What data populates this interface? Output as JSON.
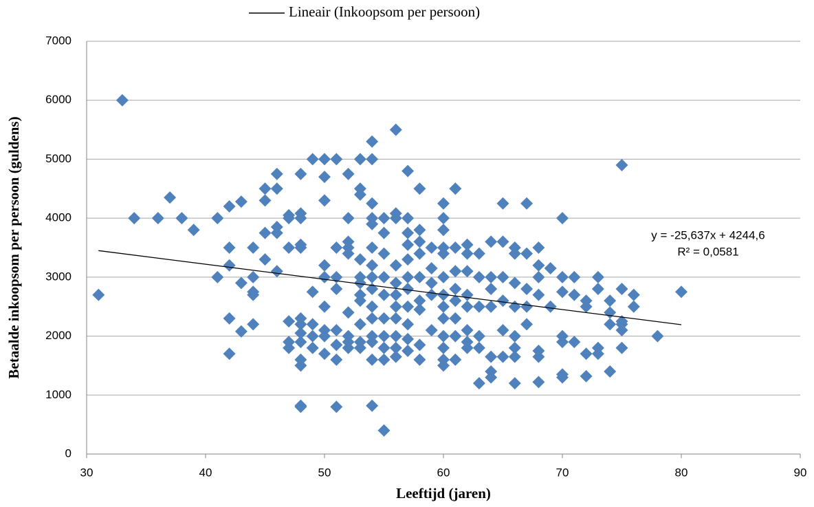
{
  "chart_data": {
    "type": "scatter",
    "legend": {
      "position": "top"
    },
    "xlabel": "Leeftijd (jaren)",
    "ylabel": "Betaalde inkoopsom per persoon (guldens)",
    "xlim": [
      30,
      90
    ],
    "xticks": [
      30,
      40,
      50,
      60,
      70,
      80,
      90
    ],
    "ylim": [
      0,
      7000
    ],
    "yticks": [
      0,
      1000,
      2000,
      3000,
      4000,
      5000,
      6000,
      7000
    ],
    "grid": true,
    "series": [
      {
        "color": "#4f81bd",
        "x": [
          31,
          33,
          34,
          36,
          37,
          38,
          39,
          41,
          41,
          42,
          42,
          42,
          42,
          42,
          43,
          43,
          43,
          44,
          44,
          44,
          44,
          44,
          45,
          45,
          45,
          45,
          46,
          46,
          46,
          46,
          46,
          47,
          47,
          47,
          47,
          47,
          47,
          48,
          48,
          48,
          48,
          48,
          48,
          48,
          48,
          48,
          48,
          48,
          48,
          48,
          49,
          49,
          49,
          49,
          49,
          50,
          50,
          50,
          50,
          50,
          50,
          50,
          50,
          50,
          51,
          51,
          51,
          51,
          51,
          51,
          51,
          51,
          52,
          52,
          52,
          52,
          52,
          52,
          52,
          52,
          52,
          53,
          53,
          53,
          53,
          53,
          53,
          53,
          53,
          53,
          53,
          53,
          54,
          54,
          54,
          54,
          54,
          54,
          54,
          54,
          54,
          54,
          54,
          54,
          54,
          54,
          54,
          55,
          55,
          55,
          55,
          55,
          55,
          55,
          55,
          55,
          55,
          56,
          56,
          56,
          56,
          56,
          56,
          56,
          56,
          56,
          56,
          56,
          57,
          57,
          57,
          57,
          57,
          57,
          57,
          57,
          57,
          57,
          57,
          58,
          58,
          58,
          58,
          58,
          58,
          58,
          58,
          58,
          59,
          59,
          59,
          59,
          59,
          60,
          60,
          60,
          60,
          60,
          60,
          60,
          60,
          60,
          60,
          60,
          60,
          60,
          61,
          61,
          61,
          61,
          61,
          61,
          61,
          61,
          62,
          62,
          62,
          62,
          62,
          62,
          62,
          62,
          63,
          63,
          63,
          63,
          63,
          63,
          64,
          64,
          64,
          64,
          64,
          64,
          64,
          65,
          65,
          65,
          65,
          65,
          65,
          66,
          66,
          66,
          66,
          66,
          66,
          66,
          66,
          67,
          67,
          67,
          67,
          67,
          68,
          68,
          68,
          68,
          68,
          68,
          68,
          69,
          69,
          70,
          70,
          70,
          70,
          70,
          70,
          70,
          71,
          71,
          71,
          72,
          72,
          72,
          72,
          73,
          73,
          73,
          73,
          74,
          74,
          74,
          74,
          75,
          75,
          75,
          75,
          75,
          75,
          76,
          76,
          78,
          80
        ],
        "values": [
          2700,
          6000,
          4000,
          4000,
          4350,
          4000,
          3800,
          4000,
          3000,
          4200,
          3500,
          3200,
          2300,
          1700,
          4280,
          2900,
          2080,
          3500,
          3000,
          2750,
          2700,
          2200,
          4500,
          4300,
          3750,
          3300,
          4750,
          4500,
          3850,
          3750,
          3100,
          4050,
          4000,
          3500,
          2250,
          1900,
          1800,
          4750,
          4080,
          4000,
          3550,
          3500,
          2300,
          2200,
          2050,
          1900,
          1600,
          1500,
          820,
          800,
          5000,
          2750,
          2200,
          2000,
          1800,
          5000,
          4700,
          4300,
          3200,
          3000,
          2500,
          2100,
          2000,
          1700,
          5000,
          3500,
          3000,
          2800,
          2100,
          1850,
          1600,
          800,
          4750,
          4000,
          3600,
          3500,
          3400,
          2400,
          2000,
          1900,
          1800,
          5000,
          4500,
          4400,
          3300,
          3000,
          2900,
          2700,
          2600,
          2200,
          1900,
          1800,
          5300,
          5000,
          4250,
          4000,
          3900,
          3500,
          3200,
          3000,
          2800,
          2500,
          2300,
          2000,
          1900,
          1600,
          820,
          4000,
          3750,
          3400,
          3000,
          2700,
          2300,
          2000,
          1800,
          1600,
          400,
          5500,
          4080,
          4000,
          3200,
          2900,
          2700,
          2500,
          2300,
          2000,
          1800,
          1650,
          4800,
          4000,
          3750,
          3550,
          3300,
          3000,
          2800,
          2500,
          2200,
          1950,
          1750,
          4500,
          3800,
          3600,
          3400,
          3000,
          2600,
          2450,
          1850,
          1600,
          3500,
          3150,
          2900,
          2700,
          2100,
          4250,
          4000,
          3800,
          3500,
          3400,
          3000,
          2700,
          2500,
          2300,
          2000,
          1800,
          1600,
          1500,
          4500,
          3500,
          3100,
          2800,
          2600,
          2300,
          2000,
          1600,
          3550,
          3400,
          3100,
          2700,
          2500,
          2100,
          1900,
          1800,
          3400,
          3000,
          2500,
          2000,
          1800,
          1200,
          3600,
          3000,
          2800,
          2500,
          1650,
          1400,
          1300,
          4250,
          3600,
          3000,
          2600,
          2100,
          1650,
          3500,
          3400,
          2900,
          2500,
          2000,
          1800,
          1650,
          1200,
          4250,
          3400,
          2800,
          2500,
          2200,
          3500,
          3200,
          3000,
          2700,
          1750,
          1650,
          1220,
          3150,
          2500,
          4000,
          3000,
          2750,
          2000,
          1900,
          1350,
          1300,
          3000,
          2700,
          1900,
          2600,
          2500,
          1700,
          1320,
          3000,
          2800,
          1800,
          1700,
          2600,
          2400,
          2200,
          1400,
          4900,
          2800,
          2250,
          2200,
          2100,
          1800,
          2700,
          2500,
          2000,
          2750
        ]
      }
    ],
    "trendline": {
      "name": "Lineair (Inkoopsom per persoon)",
      "color": "#000000",
      "slope": -25.637,
      "intercept": 4244.6,
      "equation": "y = -25,637x + 4244,6",
      "r2_label": "R² = 0,0581"
    }
  }
}
